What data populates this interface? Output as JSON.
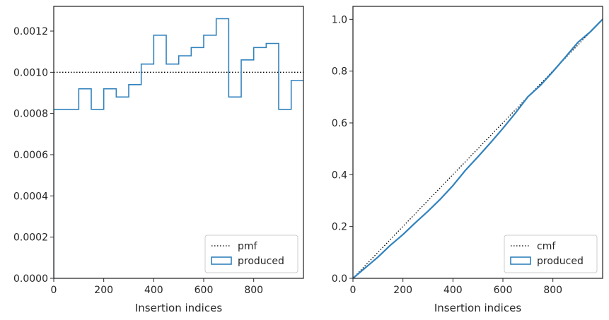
{
  "chart_data": [
    {
      "type": "histogram",
      "xlabel": "Insertion indices",
      "ylabel": "",
      "xlim": [
        0,
        999
      ],
      "ylim": [
        0,
        0.00132
      ],
      "x_ticks": [
        0,
        200,
        400,
        600,
        800
      ],
      "x_tick_labels": [
        "0",
        "200",
        "400",
        "600",
        "800"
      ],
      "y_ticks": [
        0,
        0.0002,
        0.0004,
        0.0006,
        0.0008,
        0.001,
        0.0012
      ],
      "y_tick_labels": [
        "0.0000",
        "0.0002",
        "0.0004",
        "0.0006",
        "0.0008",
        "0.0010",
        "0.0012"
      ],
      "legend": {
        "position": "lower right",
        "entries": [
          {
            "label": "pmf",
            "style": "dotted-line"
          },
          {
            "label": "produced",
            "style": "patch"
          }
        ]
      },
      "series": [
        {
          "name": "pmf",
          "kind": "dotted-line",
          "color": "#000000",
          "y": 0.001
        },
        {
          "name": "produced",
          "kind": "step-histogram",
          "color": "#3182bd",
          "bin_edges": [
            0,
            50,
            100,
            150,
            200,
            250,
            300,
            350,
            400,
            450,
            500,
            550,
            600,
            650,
            700,
            750,
            800,
            850,
            900,
            950,
            1000
          ],
          "values": [
            0.00082,
            0.00082,
            0.00092,
            0.00082,
            0.00092,
            0.00088,
            0.00094,
            0.00104,
            0.00118,
            0.00104,
            0.00108,
            0.00112,
            0.00118,
            0.00126,
            0.00088,
            0.00106,
            0.00112,
            0.00114,
            0.00082,
            0.00096
          ]
        }
      ]
    },
    {
      "type": "line",
      "xlabel": "Insertion indices",
      "ylabel": "",
      "xlim": [
        0,
        999
      ],
      "ylim": [
        0,
        1.05
      ],
      "x_ticks": [
        0,
        200,
        400,
        600,
        800
      ],
      "x_tick_labels": [
        "0",
        "200",
        "400",
        "600",
        "800"
      ],
      "y_ticks": [
        0,
        0.2,
        0.4,
        0.6,
        0.8,
        1.0
      ],
      "y_tick_labels": [
        "0.0",
        "0.2",
        "0.4",
        "0.6",
        "0.8",
        "1.0"
      ],
      "legend": {
        "position": "lower right",
        "entries": [
          {
            "label": "cmf",
            "style": "dotted-line"
          },
          {
            "label": "produced",
            "style": "patch"
          }
        ]
      },
      "series": [
        {
          "name": "cmf",
          "kind": "dotted-line",
          "color": "#000000",
          "x": [
            0,
            999
          ],
          "y": [
            0,
            1.0
          ]
        },
        {
          "name": "produced",
          "kind": "cumulative-step",
          "color": "#3182bd",
          "x": [
            0,
            50,
            100,
            150,
            200,
            250,
            300,
            350,
            400,
            450,
            500,
            550,
            600,
            650,
            700,
            750,
            800,
            850,
            900,
            950,
            999
          ],
          "y": [
            0,
            0.041,
            0.082,
            0.128,
            0.169,
            0.215,
            0.259,
            0.306,
            0.358,
            0.417,
            0.469,
            0.523,
            0.579,
            0.638,
            0.701,
            0.745,
            0.798,
            0.854,
            0.911,
            0.952,
            1.0
          ]
        }
      ]
    }
  ]
}
